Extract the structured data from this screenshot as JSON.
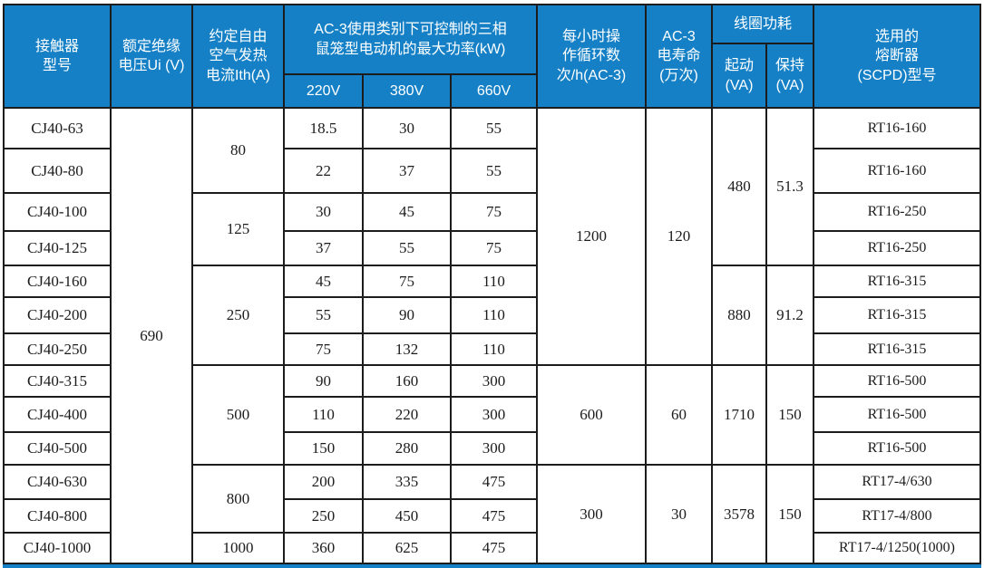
{
  "header": {
    "model": "接触器\n型号",
    "ui": "额定绝缘\n电压Ui (V)",
    "ith": "约定自由\n空气发热\n电流Ith(A)",
    "kw_group": "AC-3使用类别下可控制的三相\n鼠笼型电动机的最大功率(kW)",
    "kw_sub": [
      "220V",
      "380V",
      "660V"
    ],
    "cycles": "每小时操\n作循环数\n次/h(AC-3)",
    "life": "AC-3\n电寿命\n(万次)",
    "coil_group": "线圈功耗",
    "coil_sub": [
      "起动\n(VA)",
      "保持\n(VA)"
    ],
    "fuse": "选用的\n熔断器\n(SCPD)型号"
  },
  "merged": {
    "ui": "690",
    "ith": [
      "80",
      "125",
      "250",
      "500",
      "800",
      "1000"
    ],
    "cycles": [
      "1200",
      "600",
      "300"
    ],
    "life": [
      "120",
      "60",
      "30"
    ],
    "start": [
      "480",
      "880",
      "1710",
      "3578"
    ],
    "hold": [
      "51.3",
      "91.2",
      "150",
      "150"
    ]
  },
  "rows": [
    {
      "model": "CJ40-63",
      "kw220": "18.5",
      "kw380": "30",
      "kw660": "55",
      "fuse": "RT16-160"
    },
    {
      "model": "CJ40-80",
      "kw220": "22",
      "kw380": "37",
      "kw660": "55",
      "fuse": "RT16-160"
    },
    {
      "model": "CJ40-100",
      "kw220": "30",
      "kw380": "45",
      "kw660": "75",
      "fuse": "RT16-250"
    },
    {
      "model": "CJ40-125",
      "kw220": "37",
      "kw380": "55",
      "kw660": "75",
      "fuse": "RT16-250"
    },
    {
      "model": "CJ40-160",
      "kw220": "45",
      "kw380": "75",
      "kw660": "110",
      "fuse": "RT16-315"
    },
    {
      "model": "CJ40-200",
      "kw220": "55",
      "kw380": "90",
      "kw660": "110",
      "fuse": "RT16-315"
    },
    {
      "model": "CJ40-250",
      "kw220": "75",
      "kw380": "132",
      "kw660": "110",
      "fuse": "RT16-315"
    },
    {
      "model": "CJ40-315",
      "kw220": "90",
      "kw380": "160",
      "kw660": "300",
      "fuse": "RT16-500"
    },
    {
      "model": "CJ40-400",
      "kw220": "110",
      "kw380": "220",
      "kw660": "300",
      "fuse": "RT16-500"
    },
    {
      "model": "CJ40-500",
      "kw220": "150",
      "kw380": "280",
      "kw660": "300",
      "fuse": "RT16-500"
    },
    {
      "model": "CJ40-630",
      "kw220": "200",
      "kw380": "335",
      "kw660": "475",
      "fuse": "RT17-4/630"
    },
    {
      "model": "CJ40-800",
      "kw220": "250",
      "kw380": "450",
      "kw660": "475",
      "fuse": "RT17-4/800"
    },
    {
      "model": "CJ40-1000",
      "kw220": "360",
      "kw380": "625",
      "kw660": "475",
      "fuse": "RT17-4/1250(1000)"
    }
  ],
  "colors": {
    "header_bg": "#1580c6",
    "grid_line": "#1c1c1c",
    "header_text": "#ffffff",
    "body_text": "#1c1c1c"
  }
}
